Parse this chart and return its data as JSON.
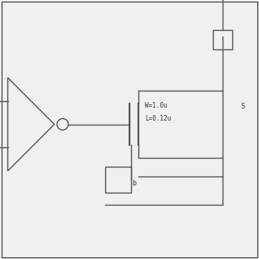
{
  "bg_color": "#f0f0f0",
  "line_color": "#555555",
  "line_width": 1.0,
  "border_color": "#333333",
  "text_color": "#333333",
  "label_W": "W=1.0u",
  "label_L": "L=0.12u",
  "label_b": "b",
  "label_S": "S"
}
